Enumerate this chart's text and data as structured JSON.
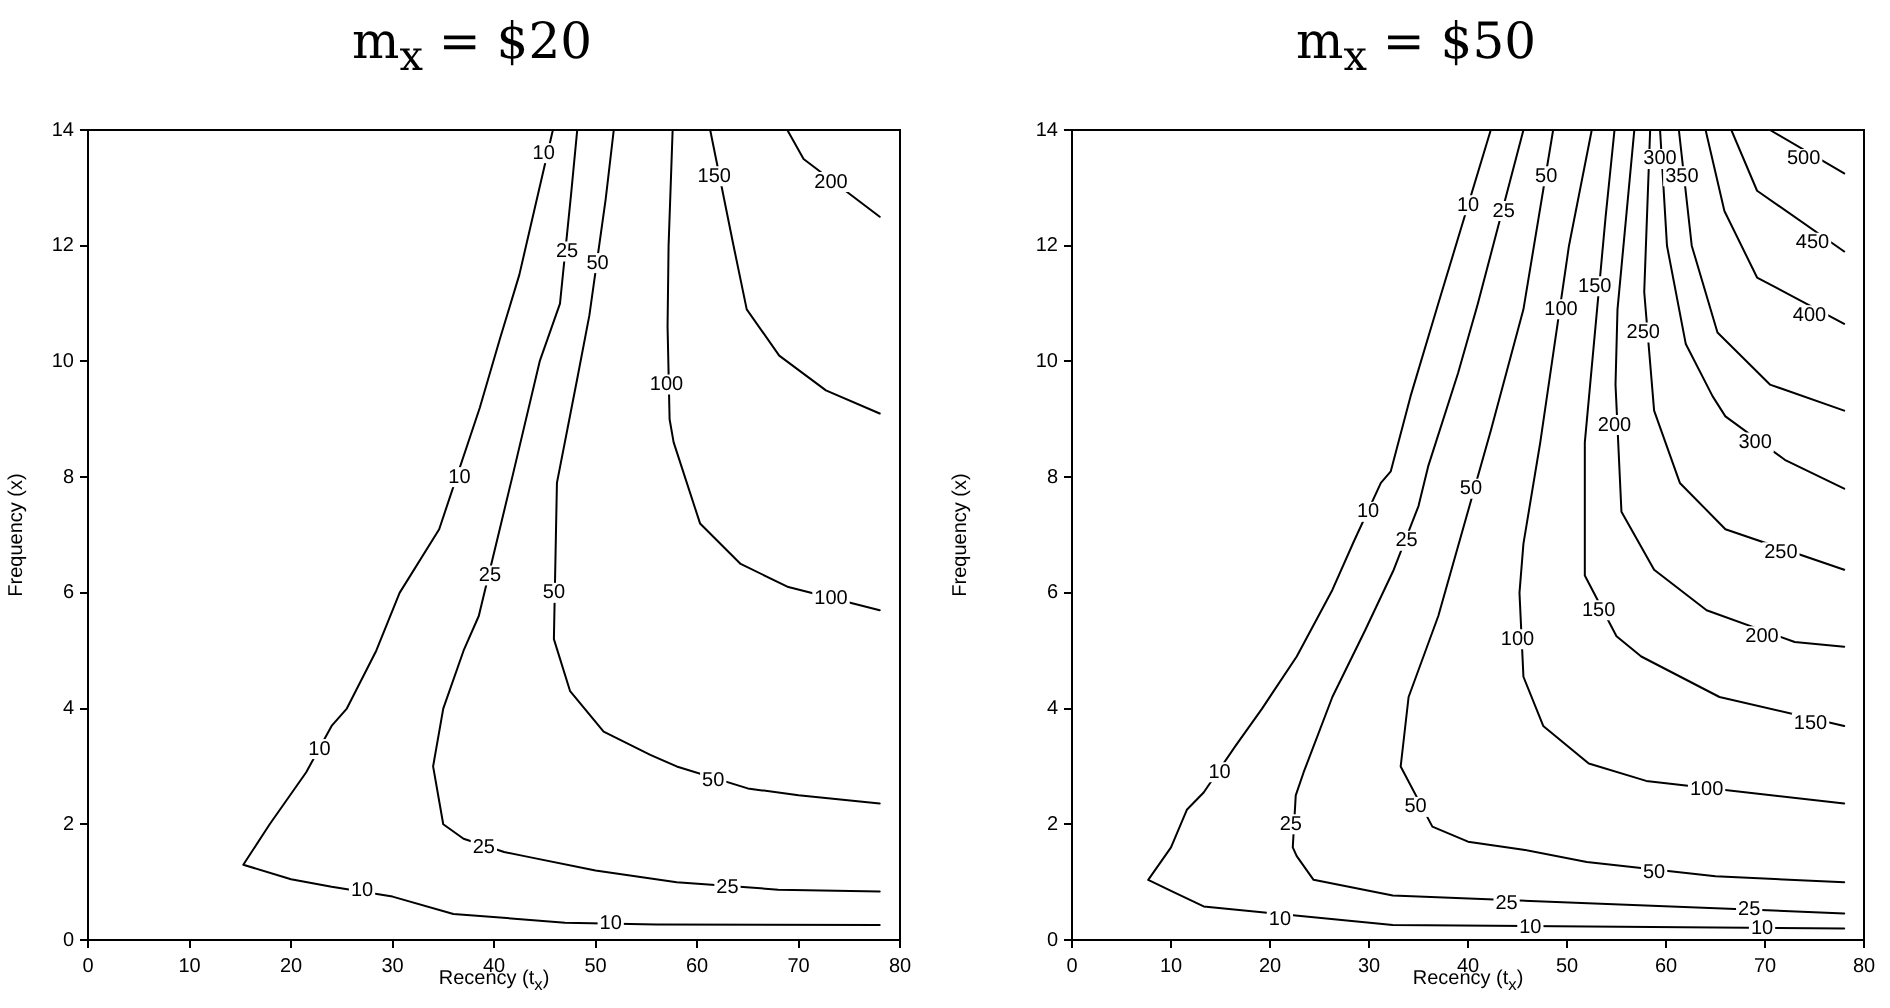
{
  "chart_data": [
    {
      "type": "line",
      "title": "m$_{x}$ = $20",
      "xlabel": "Recency (t$_{x}$)",
      "ylabel": "Frequency (x)",
      "xlim": [
        0,
        80
      ],
      "ylim": [
        0,
        14
      ],
      "xticks": [
        0,
        10,
        20,
        30,
        40,
        50,
        60,
        70,
        80
      ],
      "yticks": [
        0,
        2,
        4,
        6,
        8,
        10,
        12,
        14
      ],
      "marker": "none",
      "line_style": "solid",
      "series": [
        {
          "color": "#000000",
          "x": [
            45.8,
            42.5,
            40.6,
            38.6,
            34.6,
            30.7,
            28.4,
            25.5,
            24,
            21.5,
            17.9,
            15.3,
            20,
            24,
            30,
            36,
            47,
            56,
            78
          ],
          "values": [
            14,
            11.5,
            10.4,
            9.2,
            7.1,
            6,
            5,
            4,
            3.7,
            2.9,
            2,
            1.3,
            1.05,
            0.92,
            0.75,
            0.45,
            0.3,
            0.27,
            0.26
          ]
        },
        {
          "color": "#000000",
          "x": [
            48.2,
            47.6,
            46.5,
            44.5,
            41.8,
            40.7,
            38.5,
            37,
            35,
            34,
            35,
            37,
            41,
            43,
            50,
            58,
            68,
            78
          ],
          "values": [
            14,
            12.9,
            11,
            10,
            8,
            7.2,
            5.6,
            5,
            4,
            3,
            2,
            1.75,
            1.52,
            1.45,
            1.2,
            1,
            0.87,
            0.84
          ]
        },
        {
          "color": "#000000",
          "x": [
            51.8,
            51,
            49.4,
            48.2,
            46.2,
            46.1,
            45.9,
            47.5,
            50.8,
            55.4,
            58,
            65,
            70,
            78
          ],
          "values": [
            14,
            12.8,
            10.8,
            9.7,
            7.9,
            7,
            5.2,
            4.3,
            3.6,
            3.2,
            3,
            2.62,
            2.5,
            2.36
          ]
        },
        {
          "color": "#000000",
          "x": [
            57.6,
            57.2,
            57.1,
            57.3,
            57.7,
            60.3,
            64.3,
            69,
            78
          ],
          "values": [
            14,
            12,
            10.6,
            9,
            8.6,
            7.2,
            6.5,
            6.1,
            5.7
          ]
        },
        {
          "color": "#000000",
          "x": [
            61.3,
            63.6,
            64.9,
            68.1,
            72.7,
            78
          ],
          "values": [
            14,
            12,
            10.9,
            10.1,
            9.5,
            9.1
          ]
        },
        {
          "color": "#000000",
          "x": [
            68.9,
            70.5,
            78
          ],
          "values": [
            14,
            13.5,
            12.5
          ]
        }
      ],
      "annotations": [
        {
          "text": "10",
          "x": 44.9,
          "y": 13.6
        },
        {
          "text": "10",
          "x": 36.6,
          "y": 8
        },
        {
          "text": "10",
          "x": 22.8,
          "y": 3.3
        },
        {
          "text": "10",
          "x": 27,
          "y": 0.85
        },
        {
          "text": "10",
          "x": 51.5,
          "y": 0.28
        },
        {
          "text": "25",
          "x": 47.2,
          "y": 11.9
        },
        {
          "text": "25",
          "x": 39.6,
          "y": 6.3
        },
        {
          "text": "25",
          "x": 39,
          "y": 1.6
        },
        {
          "text": "25",
          "x": 63,
          "y": 0.9
        },
        {
          "text": "50",
          "x": 50.2,
          "y": 11.7
        },
        {
          "text": "50",
          "x": 45.9,
          "y": 6
        },
        {
          "text": "50",
          "x": 61.6,
          "y": 2.75
        },
        {
          "text": "100",
          "x": 57,
          "y": 9.6
        },
        {
          "text": "100",
          "x": 73.2,
          "y": 5.9
        },
        {
          "text": "150",
          "x": 61.7,
          "y": 13.2
        },
        {
          "text": "200",
          "x": 73.2,
          "y": 13.1
        }
      ]
    },
    {
      "type": "line",
      "title": "m$_{x}$ = $50",
      "xlabel": "Recency (t$_{x}$)",
      "ylabel": "Frequency (x)",
      "xlim": [
        0,
        80
      ],
      "ylim": [
        0,
        14
      ],
      "xticks": [
        0,
        10,
        20,
        30,
        40,
        50,
        60,
        70,
        80
      ],
      "yticks": [
        0,
        2,
        4,
        6,
        8,
        10,
        12,
        14
      ],
      "marker": "none",
      "line_style": "solid",
      "series": [
        {
          "color": "#000000",
          "x": [
            42.3,
            37,
            34.2,
            32.2,
            31.2,
            28.5,
            26.3,
            22.7,
            19.2,
            16.5,
            13.3,
            11.6,
            10,
            7.7,
            10,
            13.3,
            32.4,
            78
          ],
          "values": [
            14,
            11,
            9.4,
            8.1,
            7.9,
            6.9,
            6.05,
            4.9,
            4,
            3.35,
            2.55,
            2.25,
            1.6,
            1.04,
            0.85,
            0.58,
            0.26,
            0.2
          ]
        },
        {
          "color": "#000000",
          "x": [
            45.6,
            41,
            39,
            36,
            35,
            32.5,
            29.6,
            26.3,
            23.4,
            22.6,
            22.3,
            22.7,
            24.4,
            32.4,
            78
          ],
          "values": [
            14,
            11,
            9.8,
            8.2,
            7.5,
            6.4,
            5.35,
            4.2,
            2.9,
            2.5,
            1.6,
            1.45,
            1.04,
            0.77,
            0.46
          ]
        },
        {
          "color": "#000000",
          "x": [
            48.6,
            45.6,
            42.3,
            37,
            34,
            33.2,
            36.4,
            40,
            45.6,
            52,
            65,
            78
          ],
          "values": [
            14,
            10.9,
            8.8,
            5.6,
            4.2,
            3,
            1.96,
            1.7,
            1.56,
            1.35,
            1.1,
            1
          ]
        },
        {
          "color": "#000000",
          "x": [
            52.5,
            50.2,
            47.3,
            45.6,
            45.2,
            45.6,
            47.6,
            52.2,
            58,
            78
          ],
          "values": [
            14,
            12,
            8.6,
            6.85,
            6,
            4.55,
            3.7,
            3.05,
            2.75,
            2.36
          ]
        },
        {
          "color": "#000000",
          "x": [
            54.8,
            53.9,
            51.8,
            51.8,
            55,
            57.5,
            65.4,
            78
          ],
          "values": [
            14,
            12.5,
            8.6,
            6.3,
            5.25,
            4.9,
            4.2,
            3.7
          ]
        },
        {
          "color": "#000000",
          "x": [
            56.8,
            55.1,
            54.9,
            55.5,
            58.8,
            64.1,
            73,
            78
          ],
          "values": [
            14,
            10.9,
            9.6,
            7.4,
            6.4,
            5.7,
            5.15,
            5.07
          ]
        },
        {
          "color": "#000000",
          "x": [
            58.4,
            57.8,
            58.8,
            61.4,
            66,
            78
          ],
          "values": [
            14,
            11.2,
            9.15,
            7.9,
            7.1,
            6.4
          ]
        },
        {
          "color": "#000000",
          "x": [
            59.4,
            60.1,
            62,
            64.7,
            66,
            72,
            78
          ],
          "values": [
            14,
            12,
            10.3,
            9.4,
            9.05,
            8.3,
            7.8
          ]
        },
        {
          "color": "#000000",
          "x": [
            61.3,
            62.6,
            65.2,
            70.5,
            78
          ],
          "values": [
            14,
            12,
            10.5,
            9.6,
            9.15
          ]
        },
        {
          "color": "#000000",
          "x": [
            64,
            65.9,
            69.2,
            78
          ],
          "values": [
            14,
            12.6,
            11.45,
            10.65
          ]
        },
        {
          "color": "#000000",
          "x": [
            66.6,
            69.2,
            78
          ],
          "values": [
            14,
            12.95,
            11.9
          ]
        },
        {
          "color": "#000000",
          "x": [
            70.5,
            78
          ],
          "values": [
            14,
            13.25
          ]
        }
      ],
      "annotations": [
        {
          "text": "10",
          "x": 14.9,
          "y": 2.9
        },
        {
          "text": "10",
          "x": 29.9,
          "y": 7.4
        },
        {
          "text": "10",
          "x": 40,
          "y": 12.7
        },
        {
          "text": "10",
          "x": 21,
          "y": 0.36
        },
        {
          "text": "10",
          "x": 46.3,
          "y": 0.21
        },
        {
          "text": "10",
          "x": 69.7,
          "y": 0.2
        },
        {
          "text": "25",
          "x": 22.1,
          "y": 2
        },
        {
          "text": "25",
          "x": 33.8,
          "y": 6.9
        },
        {
          "text": "25",
          "x": 43.6,
          "y": 12.6
        },
        {
          "text": "25",
          "x": 43.9,
          "y": 0.63
        },
        {
          "text": "25",
          "x": 68.4,
          "y": 0.52
        },
        {
          "text": "50",
          "x": 47.9,
          "y": 13.2
        },
        {
          "text": "50",
          "x": 40.3,
          "y": 7.8
        },
        {
          "text": "50",
          "x": 34.7,
          "y": 2.3
        },
        {
          "text": "50",
          "x": 58.8,
          "y": 1.17
        },
        {
          "text": "100",
          "x": 49.4,
          "y": 10.9
        },
        {
          "text": "100",
          "x": 45,
          "y": 5.2
        },
        {
          "text": "100",
          "x": 64.1,
          "y": 2.6
        },
        {
          "text": "150",
          "x": 52.8,
          "y": 11.3
        },
        {
          "text": "150",
          "x": 53.2,
          "y": 5.7
        },
        {
          "text": "150",
          "x": 74.6,
          "y": 3.75
        },
        {
          "text": "200",
          "x": 54.8,
          "y": 8.9
        },
        {
          "text": "200",
          "x": 69.7,
          "y": 5.25
        },
        {
          "text": "250",
          "x": 57.7,
          "y": 10.5
        },
        {
          "text": "250",
          "x": 71.6,
          "y": 6.7
        },
        {
          "text": "300",
          "x": 59.4,
          "y": 13.5
        },
        {
          "text": "300",
          "x": 69,
          "y": 8.6
        },
        {
          "text": "350",
          "x": 61.6,
          "y": 13.2
        },
        {
          "text": "400",
          "x": 74.5,
          "y": 10.8
        },
        {
          "text": "450",
          "x": 74.8,
          "y": 12.05
        },
        {
          "text": "500",
          "x": 73.9,
          "y": 13.5
        }
      ]
    }
  ]
}
